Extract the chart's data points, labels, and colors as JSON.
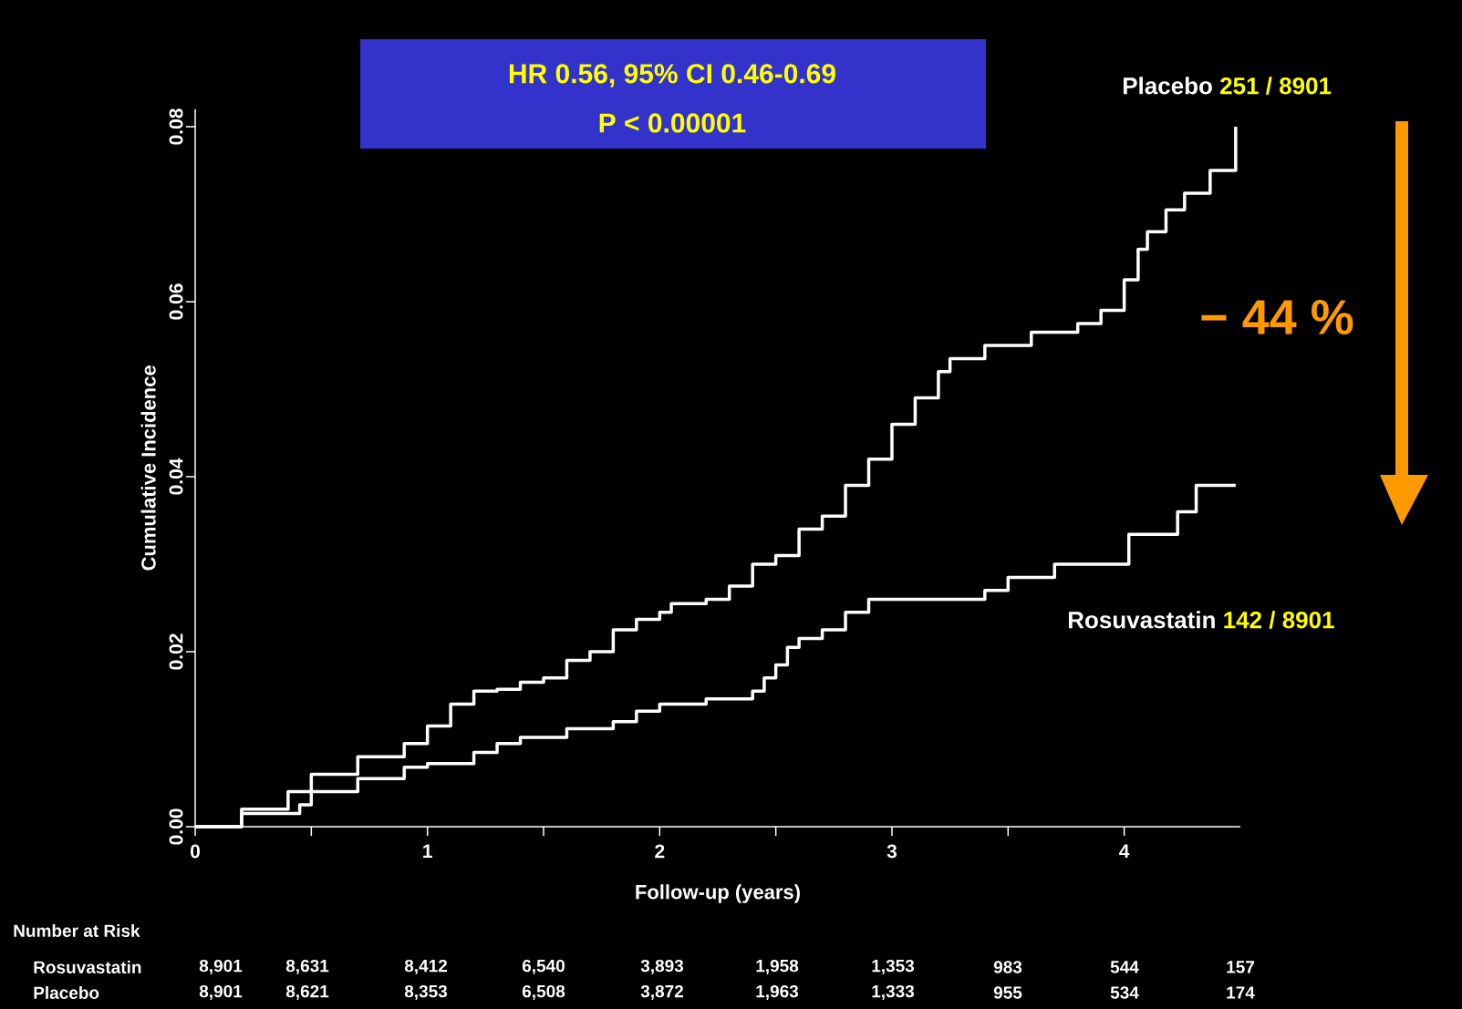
{
  "chart_data": {
    "type": "step",
    "xlabel": "Follow-up (years)",
    "ylabel": "Cumulative Incidence",
    "xlim": [
      0,
      4.5
    ],
    "ylim": [
      0,
      0.082
    ],
    "xticks": [
      0,
      {
        "value": 0.5,
        "label": null
      },
      1,
      {
        "value": 1.5,
        "label": null
      },
      2,
      {
        "value": 2.5,
        "label": null
      },
      3,
      {
        "value": 3.5,
        "label": null
      },
      4
    ],
    "yticks": [
      {
        "value": 0,
        "label": "0.00"
      },
      {
        "value": 0.02,
        "label": "0.02"
      },
      {
        "value": 0.04,
        "label": "0.04"
      },
      {
        "value": 0.06,
        "label": "0.06"
      },
      {
        "value": 0.08,
        "label": "0.08"
      }
    ],
    "series": [
      {
        "name": "Placebo",
        "color": "#ffffff",
        "x": [
          0,
          0.2,
          0.4,
          0.5,
          0.7,
          0.9,
          1.0,
          1.1,
          1.2,
          1.3,
          1.4,
          1.5,
          1.6,
          1.7,
          1.8,
          1.9,
          2.0,
          2.05,
          2.2,
          2.3,
          2.4,
          2.5,
          2.6,
          2.7,
          2.8,
          2.9,
          3.0,
          3.1,
          3.2,
          3.25,
          3.4,
          3.6,
          3.8,
          3.9,
          4.0,
          4.06,
          4.1,
          4.18,
          4.26,
          4.37,
          4.48
        ],
        "values": [
          0,
          0.002,
          0.004,
          0.006,
          0.008,
          0.0095,
          0.0115,
          0.014,
          0.0155,
          0.0157,
          0.0165,
          0.017,
          0.019,
          0.02,
          0.0225,
          0.0237,
          0.0245,
          0.0255,
          0.026,
          0.0275,
          0.03,
          0.031,
          0.034,
          0.0355,
          0.039,
          0.042,
          0.046,
          0.049,
          0.052,
          0.0535,
          0.055,
          0.0565,
          0.0575,
          0.059,
          0.0625,
          0.066,
          0.068,
          0.0705,
          0.0724,
          0.075,
          0.08
        ]
      },
      {
        "name": "Rosuvastatin",
        "color": "#ffffff",
        "x": [
          0,
          0.2,
          0.45,
          0.5,
          0.7,
          0.9,
          1.0,
          1.2,
          1.3,
          1.4,
          1.6,
          1.8,
          1.9,
          2.0,
          2.2,
          2.4,
          2.45,
          2.5,
          2.55,
          2.6,
          2.7,
          2.8,
          2.9,
          3.2,
          3.4,
          3.5,
          3.7,
          4.0,
          4.02,
          4.23,
          4.31,
          4.48
        ],
        "values": [
          0,
          0.0015,
          0.0025,
          0.004,
          0.0055,
          0.0068,
          0.0072,
          0.0085,
          0.0095,
          0.0102,
          0.0112,
          0.012,
          0.0132,
          0.014,
          0.0146,
          0.0155,
          0.017,
          0.0185,
          0.0205,
          0.0215,
          0.0225,
          0.0245,
          0.026,
          0.026,
          0.027,
          0.0285,
          0.03,
          0.03,
          0.0334,
          0.036,
          0.039,
          0.039
        ]
      }
    ],
    "annotations": [
      "HR 0.56, 95% CI 0.46-0.69",
      "P < 0.00001",
      "− 44 %",
      "Number at Risk",
      "Rosuvastatin",
      "8,901",
      "8,631",
      "8,412",
      "6,540",
      "3,893",
      "1,958",
      "1,353",
      "983",
      "544",
      "157",
      "Placebo",
      "8,901",
      "8,621",
      "8,353",
      "6,508",
      "3,872",
      "1,963",
      "1,333",
      "955",
      "534",
      "174",
      "251 / 8901",
      "142 / 8901"
    ]
  }
}
